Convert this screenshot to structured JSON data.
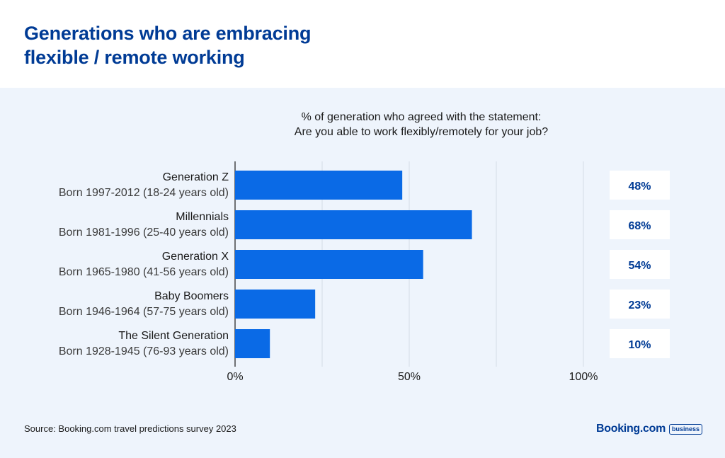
{
  "title_line1": "Generations who are embracing",
  "title_line2": "flexible / remote working",
  "subtitle_line1": "% of generation who agreed with the statement:",
  "subtitle_line2": "Are you able to work flexibly/remotely for your job?",
  "source": "Source: Booking.com travel predictions survey 2023",
  "brand": {
    "name": "Booking.com",
    "badge": "business"
  },
  "colors": {
    "bar": "#0a6ae6",
    "title": "#003b95",
    "gridline": "#d4dbe6",
    "panel": "#eef4fc",
    "label_box": "#ffffff"
  },
  "chart_data": {
    "type": "bar",
    "orientation": "horizontal",
    "title": "% of generation who agreed with the statement: Are you able to work flexibly/remotely for your job?",
    "categories": [
      {
        "name": "Generation Z",
        "detail": "Born 1997-2012 (18-24 years old)"
      },
      {
        "name": "Millennials",
        "detail": "Born 1981-1996 (25-40 years old)"
      },
      {
        "name": "Generation X",
        "detail": "Born 1965-1980 (41-56 years old)"
      },
      {
        "name": "Baby Boomers",
        "detail": "Born 1946-1964 (57-75 years old)"
      },
      {
        "name": "The Silent Generation",
        "detail": "Born 1928-1945 (76-93 years old)"
      }
    ],
    "values": [
      48,
      68,
      54,
      23,
      10
    ],
    "value_labels": [
      "48%",
      "68%",
      "54%",
      "23%",
      "10%"
    ],
    "xlim": [
      0,
      100
    ],
    "xticks": [
      0,
      50,
      100
    ],
    "xtick_labels": [
      "0%",
      "50%",
      "100%"
    ],
    "gridlines": [
      25,
      50,
      75,
      100
    ],
    "xlabel": "",
    "ylabel": ""
  }
}
